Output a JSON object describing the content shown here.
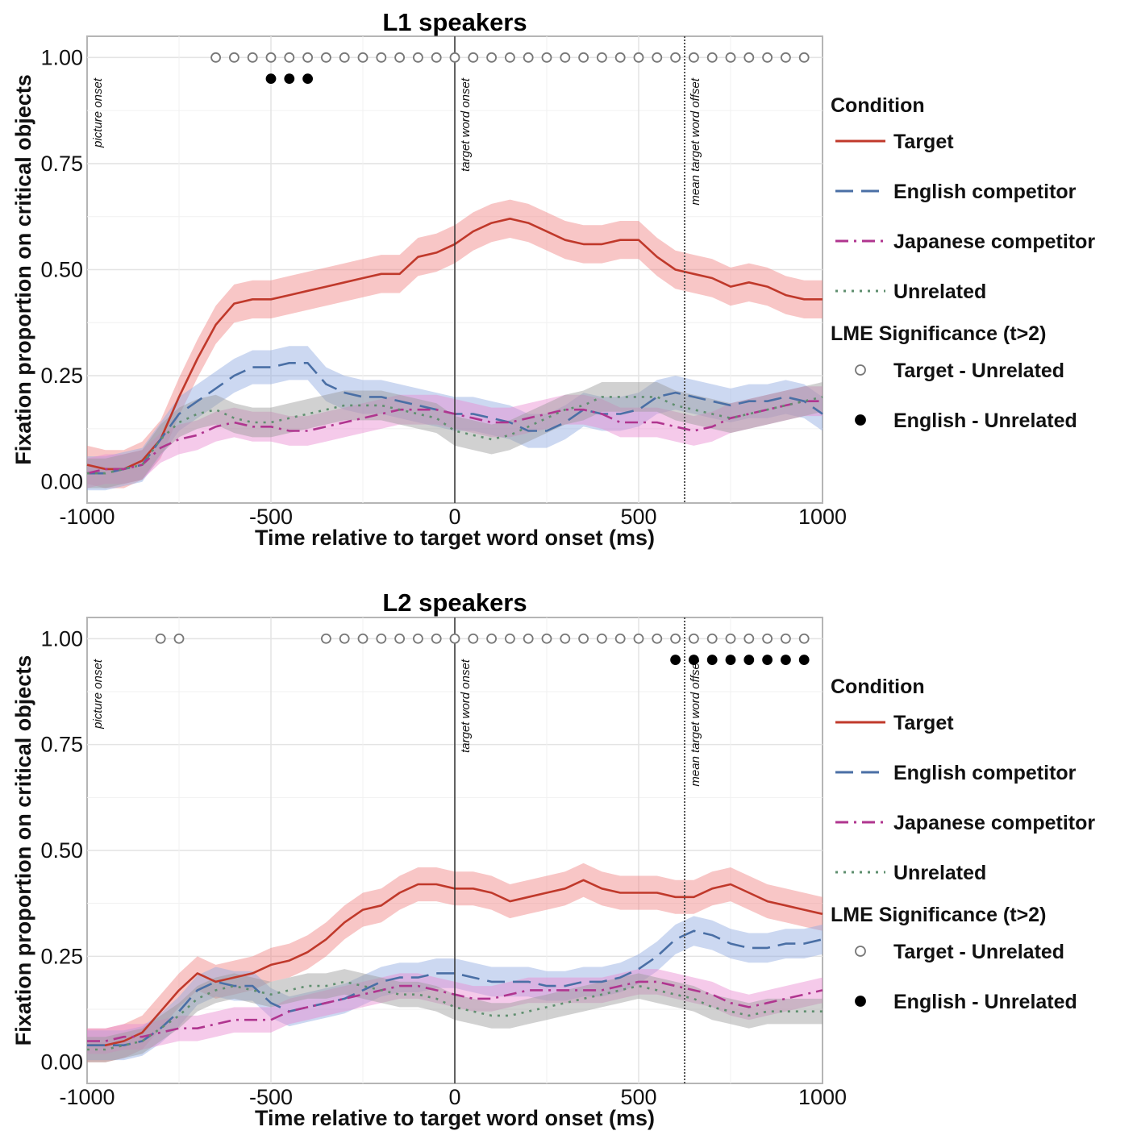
{
  "chart_data": [
    {
      "type": "line",
      "title": "L1 speakers",
      "xlabel": "Time relative to target word onset (ms)",
      "ylabel": "Fixation proportion on critical objects",
      "xlim": [
        -1000,
        1000
      ],
      "ylim": [
        -0.05,
        1.05
      ],
      "x_ticks": [
        "-1000",
        "-500",
        "0",
        "500",
        "1000"
      ],
      "y_ticks": [
        "0.00",
        "0.25",
        "0.50",
        "0.75",
        "1.00"
      ],
      "grid": true,
      "vlines": [
        {
          "x": -1000,
          "label": "picture onset",
          "style": "none"
        },
        {
          "x": 0,
          "label": "target word onset",
          "style": "solid"
        },
        {
          "x": 625,
          "label": "mean target word offset",
          "style": "dotted"
        }
      ],
      "x": [
        -1000,
        -950,
        -900,
        -850,
        -800,
        -750,
        -700,
        -650,
        -600,
        -550,
        -500,
        -450,
        -400,
        -350,
        -300,
        -250,
        -200,
        -150,
        -100,
        -50,
        0,
        50,
        100,
        150,
        200,
        250,
        300,
        350,
        400,
        450,
        500,
        550,
        600,
        650,
        700,
        750,
        800,
        850,
        900,
        950,
        1000
      ],
      "series": [
        {
          "name": "Target",
          "band": 0.045,
          "values": [
            0.04,
            0.03,
            0.03,
            0.05,
            0.1,
            0.2,
            0.29,
            0.37,
            0.42,
            0.43,
            0.43,
            0.44,
            0.45,
            0.46,
            0.47,
            0.48,
            0.49,
            0.49,
            0.53,
            0.54,
            0.56,
            0.59,
            0.61,
            0.62,
            0.61,
            0.59,
            0.57,
            0.56,
            0.56,
            0.57,
            0.57,
            0.53,
            0.5,
            0.49,
            0.48,
            0.46,
            0.47,
            0.46,
            0.44,
            0.43,
            0.43
          ]
        },
        {
          "name": "English competitor",
          "band": 0.04,
          "values": [
            0.02,
            0.02,
            0.03,
            0.04,
            0.1,
            0.16,
            0.19,
            0.22,
            0.25,
            0.27,
            0.27,
            0.28,
            0.28,
            0.23,
            0.21,
            0.2,
            0.2,
            0.19,
            0.18,
            0.17,
            0.16,
            0.16,
            0.15,
            0.14,
            0.12,
            0.12,
            0.14,
            0.17,
            0.16,
            0.16,
            0.17,
            0.2,
            0.21,
            0.2,
            0.19,
            0.18,
            0.19,
            0.19,
            0.2,
            0.19,
            0.16
          ]
        },
        {
          "name": "Japanese competitor",
          "band": 0.035,
          "values": [
            0.02,
            0.03,
            0.03,
            0.04,
            0.08,
            0.1,
            0.11,
            0.13,
            0.14,
            0.13,
            0.13,
            0.12,
            0.12,
            0.13,
            0.14,
            0.15,
            0.16,
            0.17,
            0.17,
            0.17,
            0.16,
            0.15,
            0.14,
            0.14,
            0.15,
            0.16,
            0.17,
            0.17,
            0.16,
            0.14,
            0.14,
            0.14,
            0.13,
            0.12,
            0.13,
            0.15,
            0.16,
            0.17,
            0.18,
            0.19,
            0.19
          ]
        },
        {
          "name": "Unrelated",
          "band": 0.035,
          "values": [
            0.02,
            0.02,
            0.03,
            0.04,
            0.1,
            0.14,
            0.16,
            0.17,
            0.15,
            0.14,
            0.14,
            0.15,
            0.16,
            0.17,
            0.18,
            0.18,
            0.18,
            0.17,
            0.16,
            0.15,
            0.12,
            0.11,
            0.1,
            0.11,
            0.13,
            0.15,
            0.17,
            0.18,
            0.2,
            0.2,
            0.2,
            0.2,
            0.18,
            0.17,
            0.16,
            0.15,
            0.16,
            0.17,
            0.18,
            0.19,
            0.2
          ]
        }
      ],
      "significance": [
        {
          "name": "Target - Unrelated",
          "y": 1.0,
          "x": [
            -650,
            -600,
            -550,
            -500,
            -450,
            -400,
            -350,
            -300,
            -250,
            -200,
            -150,
            -100,
            -50,
            0,
            50,
            100,
            150,
            200,
            250,
            300,
            350,
            400,
            450,
            500,
            550,
            600,
            650,
            700,
            750,
            800,
            850,
            900,
            950
          ]
        },
        {
          "name": "English - Unrelated",
          "y": 0.95,
          "x": [
            -500,
            -450,
            -400
          ]
        }
      ]
    },
    {
      "type": "line",
      "title": "L2 speakers",
      "xlabel": "Time relative to target word onset (ms)",
      "ylabel": "Fixation proportion on critical objects",
      "xlim": [
        -1000,
        1000
      ],
      "ylim": [
        -0.05,
        1.05
      ],
      "x_ticks": [
        "-1000",
        "-500",
        "0",
        "500",
        "1000"
      ],
      "y_ticks": [
        "0.00",
        "0.25",
        "0.50",
        "0.75",
        "1.00"
      ],
      "grid": true,
      "vlines": [
        {
          "x": -1000,
          "label": "picture onset",
          "style": "none"
        },
        {
          "x": 0,
          "label": "target word onset",
          "style": "solid"
        },
        {
          "x": 625,
          "label": "mean target word offset",
          "style": "dotted"
        }
      ],
      "x": [
        -1000,
        -950,
        -900,
        -850,
        -800,
        -750,
        -700,
        -650,
        -600,
        -550,
        -500,
        -450,
        -400,
        -350,
        -300,
        -250,
        -200,
        -150,
        -100,
        -50,
        0,
        50,
        100,
        150,
        200,
        250,
        300,
        350,
        400,
        450,
        500,
        550,
        600,
        650,
        700,
        750,
        800,
        850,
        900,
        950,
        1000
      ],
      "series": [
        {
          "name": "Target",
          "band": 0.04,
          "values": [
            0.04,
            0.04,
            0.05,
            0.07,
            0.12,
            0.17,
            0.21,
            0.19,
            0.2,
            0.21,
            0.23,
            0.24,
            0.26,
            0.29,
            0.33,
            0.36,
            0.37,
            0.4,
            0.42,
            0.42,
            0.41,
            0.41,
            0.4,
            0.38,
            0.39,
            0.4,
            0.41,
            0.43,
            0.41,
            0.4,
            0.4,
            0.4,
            0.39,
            0.39,
            0.41,
            0.42,
            0.4,
            0.38,
            0.37,
            0.36,
            0.35
          ]
        },
        {
          "name": "English competitor",
          "band": 0.035,
          "values": [
            0.04,
            0.04,
            0.04,
            0.05,
            0.08,
            0.12,
            0.17,
            0.19,
            0.18,
            0.18,
            0.14,
            0.12,
            0.13,
            0.14,
            0.15,
            0.17,
            0.19,
            0.2,
            0.2,
            0.21,
            0.21,
            0.2,
            0.19,
            0.19,
            0.19,
            0.18,
            0.18,
            0.19,
            0.19,
            0.2,
            0.22,
            0.25,
            0.29,
            0.31,
            0.3,
            0.28,
            0.27,
            0.27,
            0.28,
            0.28,
            0.29
          ]
        },
        {
          "name": "Japanese competitor",
          "band": 0.03,
          "values": [
            0.05,
            0.05,
            0.06,
            0.06,
            0.07,
            0.08,
            0.08,
            0.09,
            0.1,
            0.1,
            0.1,
            0.12,
            0.13,
            0.14,
            0.15,
            0.16,
            0.17,
            0.18,
            0.18,
            0.17,
            0.16,
            0.15,
            0.15,
            0.16,
            0.17,
            0.17,
            0.17,
            0.17,
            0.17,
            0.18,
            0.19,
            0.19,
            0.18,
            0.17,
            0.16,
            0.14,
            0.13,
            0.14,
            0.15,
            0.16,
            0.17
          ]
        },
        {
          "name": "Unrelated",
          "band": 0.03,
          "values": [
            0.03,
            0.03,
            0.04,
            0.05,
            0.08,
            0.11,
            0.15,
            0.17,
            0.18,
            0.17,
            0.16,
            0.17,
            0.18,
            0.18,
            0.19,
            0.18,
            0.17,
            0.16,
            0.16,
            0.15,
            0.13,
            0.12,
            0.11,
            0.11,
            0.12,
            0.13,
            0.14,
            0.15,
            0.16,
            0.17,
            0.18,
            0.17,
            0.16,
            0.15,
            0.13,
            0.12,
            0.11,
            0.12,
            0.12,
            0.12,
            0.12
          ]
        }
      ],
      "significance": [
        {
          "name": "Target - Unrelated",
          "y": 1.0,
          "x": [
            -800,
            -750,
            -350,
            -300,
            -250,
            -200,
            -150,
            -100,
            -50,
            0,
            50,
            100,
            150,
            200,
            250,
            300,
            350,
            400,
            450,
            500,
            550,
            600,
            650,
            700,
            750,
            800,
            850,
            900,
            950
          ]
        },
        {
          "name": "English - Unrelated",
          "y": 0.95,
          "x": [
            600,
            650,
            700,
            750,
            800,
            850,
            900,
            950
          ]
        }
      ]
    }
  ],
  "legend": {
    "condition_title": "Condition",
    "items": [
      "Target",
      "English competitor",
      "Japanese competitor",
      "Unrelated"
    ],
    "sig_title": "LME Significance (t>2)",
    "sig_items": [
      "Target - Unrelated",
      "English - Unrelated"
    ]
  },
  "colors": {
    "Target": "#c0392b",
    "English competitor": "#4a6fa5",
    "Japanese competitor": "#b0358f",
    "Unrelated": "#5f8f6f",
    "band_Target": "#f08080",
    "band_English competitor": "#8fa8e0",
    "band_Japanese competitor": "#e88ad0",
    "band_Unrelated": "#9a9a9a"
  }
}
